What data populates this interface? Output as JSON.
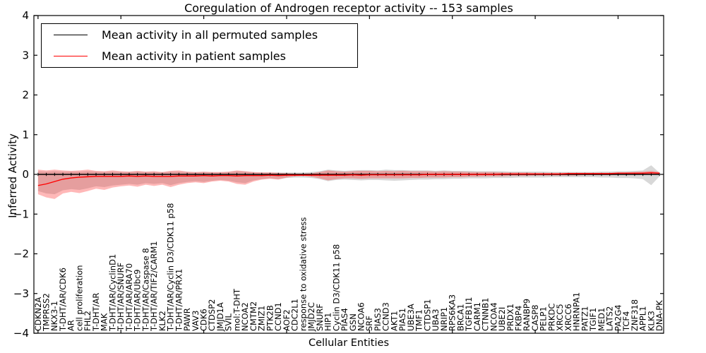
{
  "figure": {
    "title": "Coregulation of Androgen receptor activity -- 153 samples",
    "xlabel": "Cellular Entities",
    "ylabel": "Inferred Activity"
  },
  "legend": {
    "entries": [
      {
        "label": "Mean activity in all permuted samples",
        "color": "#000000"
      },
      {
        "label": "Mean activity in patient samples",
        "color": "#ff0000"
      }
    ],
    "position": "upper left"
  },
  "axes": {
    "ylim": [
      -4,
      4
    ],
    "ytick_values": [
      4,
      3,
      2,
      1,
      0,
      -1,
      -2,
      -3,
      -4
    ],
    "ytick_labels": [
      "4",
      "3",
      "2",
      "1",
      "0",
      "−1",
      "−2",
      "−3",
      "−4"
    ],
    "xtick_every": 10,
    "grid": false
  },
  "chart_data": {
    "type": "line",
    "title": "Coregulation of Androgen receptor activity -- 153 samples",
    "xlabel": "Cellular Entities",
    "ylabel": "Inferred Activity",
    "ylim": [
      -4,
      4
    ],
    "legend_position": "upper left",
    "grid": false,
    "categories": [
      "CDKN2A",
      "TMPRSS2",
      "NKX3-1",
      "T-DHT/AR/CDK6",
      "AR",
      "cell proliferation",
      "FHL2",
      "T-DHT/AR",
      "MAK",
      "T-DHT/AR/CyclinD1",
      "T-DHT/AR/SNURF",
      "T-DHT/AR/ARA70",
      "T-DHT/AR/Ubc9",
      "T-DHT/AR/Caspase 8",
      "T-DHT/AR/TIF2/CARM1",
      "KLK2",
      "T-DHT/AR/Cyclin D3/CDK11 p58",
      "T-DHT/AR/PRX1",
      "PAWR",
      "VAV3",
      "CDK6",
      "CTDSP2",
      "JMJD1A",
      "SVIL",
      "mol:T-DHT",
      "NCOA2",
      "CMTM2",
      "ZMIZ1",
      "PTK2B",
      "CCND1",
      "AOF2",
      "CDC2L1",
      "response to oxidative stress",
      "JMJD2C",
      "SNURF",
      "HIP1",
      "Cyclin D3/CDK11 p58",
      "PIAS4",
      "GSN",
      "NCOA6",
      "SRF",
      "PIAS3",
      "CCND3",
      "AKT1",
      "PIAS1",
      "UBE3A",
      "TMF1",
      "CTDSP1",
      "UBA3",
      "NRIP1",
      "RPS6KA3",
      "BRCA1",
      "TGFB1I1",
      "CARM1",
      "CTNNB1",
      "NCOA4",
      "UBE2I",
      "PRDX1",
      "FKBP4",
      "RANBP9",
      "CASP8",
      "PELP1",
      "PRKDC",
      "XRCC5",
      "XRCC6",
      "HNRNPA1",
      "PATZ1",
      "TGIF1",
      "MED1",
      "LATS2",
      "PA2G4",
      "TCF4",
      "ZNF318",
      "APPL1",
      "KLK3",
      "DNA-PK"
    ],
    "series": [
      {
        "name": "Mean activity in all permuted samples",
        "color": "#000000",
        "marker": "tick",
        "values": [
          0,
          0,
          0,
          0,
          0,
          0,
          0,
          0,
          0,
          0,
          0,
          0,
          0,
          0,
          0,
          0,
          0,
          0,
          0,
          0,
          0,
          0,
          0,
          0,
          0,
          0,
          0,
          0,
          0,
          0,
          0,
          0,
          0,
          0,
          0,
          0,
          0,
          0,
          0,
          0,
          0,
          0,
          0,
          0,
          0,
          0,
          0,
          0,
          0,
          0,
          0,
          0,
          0,
          0,
          0,
          0,
          0,
          0,
          0,
          0,
          0,
          0,
          0,
          0,
          0,
          0,
          0,
          0,
          0,
          0,
          0,
          0,
          0,
          0,
          0,
          0
        ]
      },
      {
        "name": "Mean activity in patient samples",
        "color": "#ff0000",
        "marker": "none",
        "values": [
          -0.28,
          -0.24,
          -0.18,
          -0.12,
          -0.09,
          -0.07,
          -0.06,
          -0.05,
          -0.05,
          -0.05,
          -0.05,
          -0.04,
          -0.05,
          -0.04,
          -0.05,
          -0.05,
          -0.05,
          -0.04,
          -0.04,
          -0.04,
          -0.03,
          -0.04,
          -0.03,
          -0.03,
          -0.04,
          -0.03,
          -0.03,
          -0.03,
          -0.02,
          -0.03,
          -0.02,
          -0.02,
          -0.02,
          -0.02,
          -0.02,
          -0.02,
          -0.02,
          -0.02,
          -0.01,
          -0.02,
          -0.01,
          -0.01,
          -0.01,
          -0.01,
          -0.01,
          -0.01,
          -0.01,
          0.0,
          0.0,
          0.0,
          0.0,
          0.0,
          0.0,
          0.0,
          0.0,
          0.0,
          0.01,
          0.01,
          0.01,
          0.01,
          0.01,
          0.01,
          0.01,
          0.01,
          0.02,
          0.02,
          0.02,
          0.02,
          0.02,
          0.02,
          0.03,
          0.03,
          0.03,
          0.03,
          0.04,
          0.03
        ]
      }
    ],
    "bands": [
      {
        "name": "permuted-samples-range",
        "fill": "rgba(125,125,125,0.30)",
        "upper": [
          0.08,
          0.07,
          0.08,
          0.07,
          0.07,
          0.07,
          0.08,
          0.07,
          0.06,
          0.07,
          0.06,
          0.06,
          0.07,
          0.06,
          0.06,
          0.05,
          0.07,
          0.07,
          0.06,
          0.05,
          0.06,
          0.05,
          0.05,
          0.06,
          0.08,
          0.07,
          0.05,
          0.05,
          0.05,
          0.05,
          0.05,
          0.05,
          0.05,
          0.06,
          0.08,
          0.12,
          0.1,
          0.09,
          0.1,
          0.11,
          0.11,
          0.1,
          0.12,
          0.11,
          0.11,
          0.1,
          0.1,
          0.1,
          0.09,
          0.1,
          0.09,
          0.09,
          0.09,
          0.08,
          0.08,
          0.08,
          0.08,
          0.07,
          0.07,
          0.07,
          0.07,
          0.07,
          0.06,
          0.06,
          0.06,
          0.06,
          0.06,
          0.06,
          0.07,
          0.07,
          0.08,
          0.08,
          0.09,
          0.1,
          0.23,
          0.04
        ],
        "lower": [
          -0.42,
          -0.48,
          -0.5,
          -0.4,
          -0.37,
          -0.39,
          -0.35,
          -0.3,
          -0.32,
          -0.28,
          -0.26,
          -0.24,
          -0.26,
          -0.22,
          -0.24,
          -0.22,
          -0.27,
          -0.22,
          -0.19,
          -0.17,
          -0.19,
          -0.16,
          -0.14,
          -0.16,
          -0.2,
          -0.22,
          -0.15,
          -0.12,
          -0.1,
          -0.12,
          -0.09,
          -0.08,
          -0.08,
          -0.09,
          -0.12,
          -0.17,
          -0.14,
          -0.13,
          -0.14,
          -0.15,
          -0.14,
          -0.14,
          -0.15,
          -0.16,
          -0.15,
          -0.14,
          -0.13,
          -0.13,
          -0.12,
          -0.12,
          -0.11,
          -0.11,
          -0.1,
          -0.1,
          -0.1,
          -0.09,
          -0.09,
          -0.09,
          -0.08,
          -0.08,
          -0.08,
          -0.08,
          -0.07,
          -0.07,
          -0.07,
          -0.07,
          -0.07,
          -0.07,
          -0.08,
          -0.08,
          -0.09,
          -0.09,
          -0.1,
          -0.12,
          -0.27,
          -0.05
        ]
      },
      {
        "name": "patient-samples-range",
        "fill": "rgba(255,40,40,0.33)",
        "upper": [
          0.12,
          0.1,
          0.12,
          0.1,
          0.09,
          0.1,
          0.12,
          0.09,
          0.08,
          0.1,
          0.08,
          0.07,
          0.09,
          0.07,
          0.08,
          0.06,
          0.09,
          0.1,
          0.07,
          0.06,
          0.07,
          0.06,
          0.06,
          0.07,
          0.1,
          0.08,
          0.06,
          0.05,
          0.05,
          0.04,
          0.03,
          0.02,
          0.02,
          0.03,
          0.06,
          0.1,
          0.08,
          0.07,
          0.08,
          0.09,
          0.09,
          0.08,
          0.09,
          0.08,
          0.09,
          0.08,
          0.08,
          0.08,
          0.07,
          0.08,
          0.07,
          0.07,
          0.06,
          0.06,
          0.06,
          0.06,
          0.05,
          0.05,
          0.05,
          0.05,
          0.04,
          0.04,
          0.04,
          0.04,
          0.04,
          0.04,
          0.04,
          0.04,
          0.04,
          0.04,
          0.05,
          0.05,
          0.06,
          0.07,
          0.09,
          0.06
        ],
        "lower": [
          -0.5,
          -0.58,
          -0.62,
          -0.48,
          -0.44,
          -0.47,
          -0.42,
          -0.36,
          -0.39,
          -0.33,
          -0.3,
          -0.28,
          -0.31,
          -0.26,
          -0.29,
          -0.26,
          -0.32,
          -0.26,
          -0.22,
          -0.2,
          -0.22,
          -0.18,
          -0.16,
          -0.18,
          -0.24,
          -0.26,
          -0.18,
          -0.13,
          -0.11,
          -0.13,
          -0.08,
          -0.05,
          -0.04,
          -0.06,
          -0.1,
          -0.15,
          -0.12,
          -0.1,
          -0.1,
          -0.11,
          -0.1,
          -0.1,
          -0.1,
          -0.1,
          -0.1,
          -0.09,
          -0.09,
          -0.08,
          -0.08,
          -0.08,
          -0.07,
          -0.07,
          -0.06,
          -0.06,
          -0.05,
          -0.05,
          -0.05,
          -0.04,
          -0.04,
          -0.04,
          -0.03,
          -0.03,
          -0.03,
          -0.03,
          -0.03,
          -0.03,
          -0.02,
          -0.02,
          -0.02,
          -0.02,
          -0.02,
          -0.02,
          -0.02,
          -0.01,
          0.0,
          0.01
        ]
      }
    ]
  }
}
